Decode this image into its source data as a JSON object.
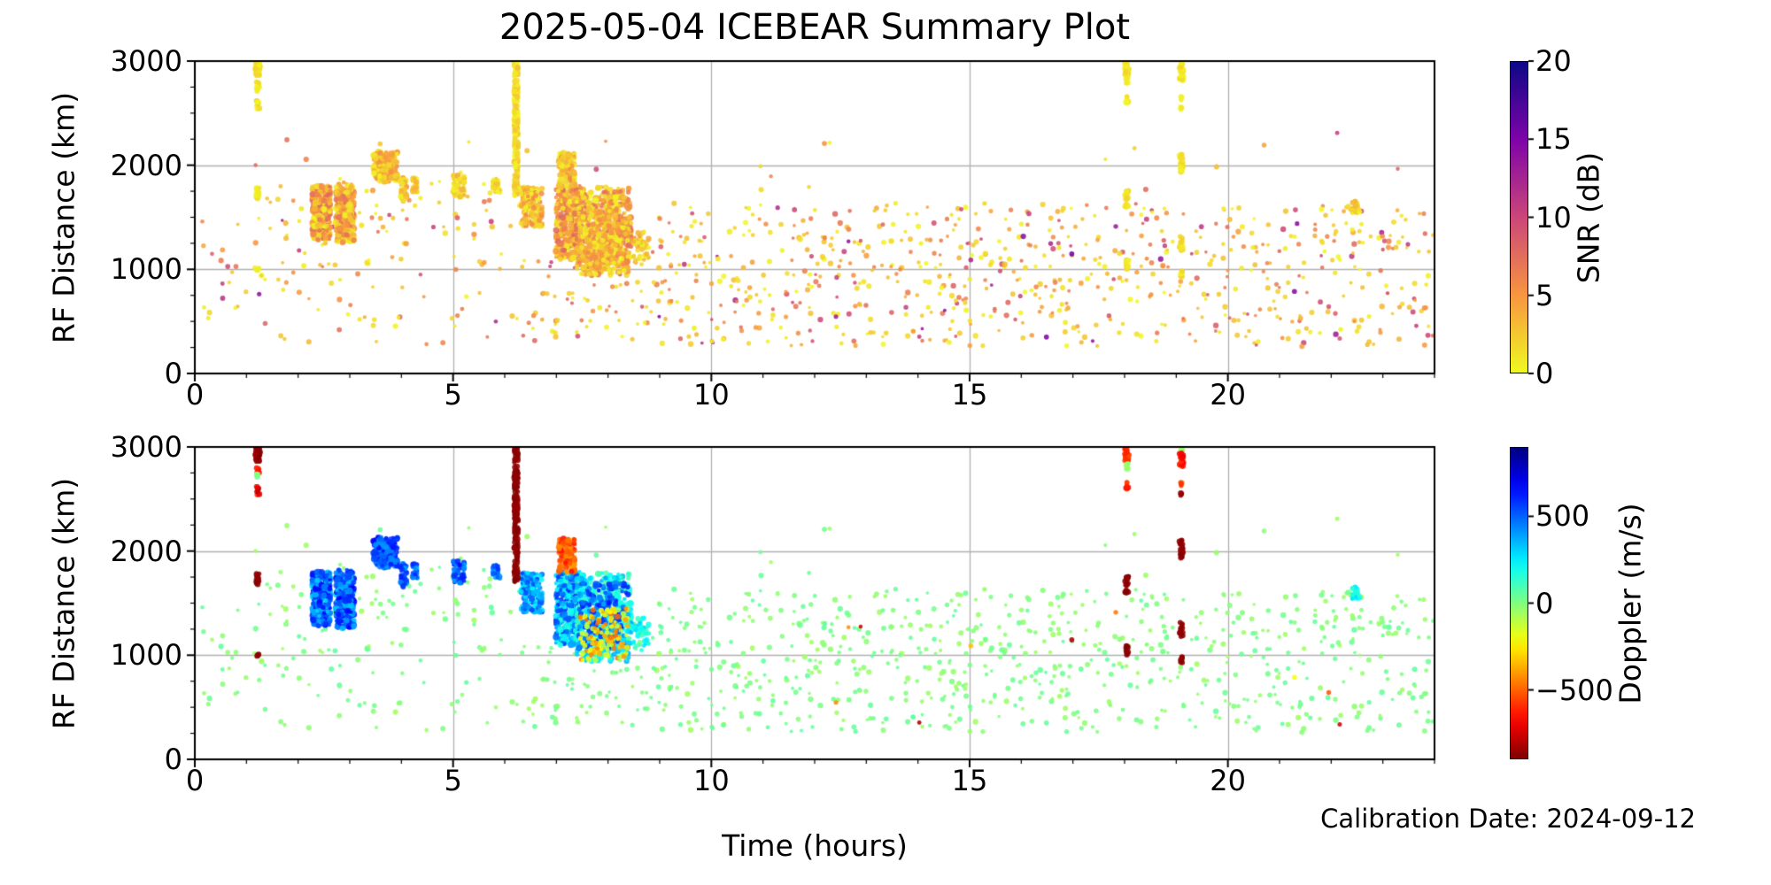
{
  "figure": {
    "title": "2025-05-04 ICEBEAR Summary Plot",
    "annotation": "Calibration Date: 2024-09-12",
    "background": "#ffffff",
    "grid_color": "#b0b0b0",
    "spine_color": "#000000"
  },
  "chart_data": [
    {
      "id": "snr",
      "type": "scatter",
      "title": "2025-05-04 ICEBEAR Summary Plot",
      "xlabel": "",
      "ylabel": "RF Distance (km)",
      "xlim": [
        0,
        24
      ],
      "ylim": [
        0,
        3000
      ],
      "xticks": [
        0,
        5,
        10,
        15,
        20
      ],
      "yticks": [
        0,
        1000,
        2000,
        3000
      ],
      "x_minor_step": 1,
      "y_minor_step": 250,
      "grid": true,
      "color_by": "snr",
      "legend_position": "none",
      "colorbar": {
        "label": "SNR (dB)",
        "ticks": [
          0,
          5,
          10,
          15,
          20
        ],
        "vmin": 0,
        "vmax": 20,
        "colormap": "plasma_r"
      }
    },
    {
      "id": "doppler",
      "type": "scatter",
      "title": "",
      "xlabel": "Time (hours)",
      "ylabel": "RF Distance (km)",
      "xlim": [
        0,
        24
      ],
      "ylim": [
        0,
        3000
      ],
      "xticks": [
        0,
        5,
        10,
        15,
        20
      ],
      "yticks": [
        0,
        1000,
        2000,
        3000
      ],
      "x_minor_step": 1,
      "y_minor_step": 250,
      "grid": true,
      "color_by": "doppler",
      "legend_position": "none",
      "colorbar": {
        "label": "Doppler (m/s)",
        "ticks": [
          -500,
          0,
          500
        ],
        "vmin": -900,
        "vmax": 900,
        "colormap": "jet"
      }
    }
  ],
  "point_groups": [
    {
      "name": "background-early",
      "x": [
        0.08,
        2.25
      ],
      "y": [
        260,
        1680
      ],
      "n": 50,
      "snr": "bg",
      "dop": [
        -60,
        60
      ],
      "r": [
        1.8,
        3.2
      ]
    },
    {
      "name": "background-morning",
      "x": [
        2.25,
        6.3
      ],
      "y": [
        260,
        1850
      ],
      "n": 105,
      "snr": "bg",
      "dop": [
        -60,
        60
      ],
      "r": [
        1.8,
        3.2
      ]
    },
    {
      "name": "background-midday",
      "x": [
        6.3,
        8.5
      ],
      "y": [
        260,
        1120
      ],
      "n": 60,
      "snr": "bg",
      "dop": [
        -60,
        60
      ],
      "r": [
        1.8,
        3.2
      ]
    },
    {
      "name": "background-afternoon",
      "x": [
        8.5,
        17.0
      ],
      "y": [
        260,
        1640
      ],
      "n": 440,
      "snr": "bg",
      "dop": [
        -60,
        60
      ],
      "r": [
        1.8,
        3.2
      ]
    },
    {
      "name": "background-evening",
      "x": [
        17.0,
        24.0
      ],
      "y": [
        260,
        1640
      ],
      "n": 310,
      "snr": "bg",
      "dop": [
        -60,
        60
      ],
      "r": [
        1.8,
        3.2
      ]
    },
    {
      "name": "background-high-altitude",
      "x": [
        0.3,
        23.8
      ],
      "y": [
        1660,
        2320
      ],
      "n": 26,
      "snr": "bg",
      "dop": [
        -60,
        60
      ],
      "r": [
        1.8,
        3.2
      ]
    },
    {
      "name": "dark-outliers",
      "x": [
        9.0,
        23.5
      ],
      "y": [
        260,
        1450
      ],
      "n": 10,
      "snr": [
        8,
        16
      ],
      "dop": [
        -880,
        -200
      ],
      "r": [
        2,
        3
      ]
    },
    {
      "name": "echo-cluster-0230",
      "x": [
        2.27,
        2.63
      ],
      "y": [
        1280,
        1800
      ],
      "n": 280,
      "snr": [
        0,
        8
      ],
      "dop": [
        280,
        680
      ],
      "r": [
        2,
        3.8
      ],
      "striate": true
    },
    {
      "name": "echo-cluster-0250",
      "x": [
        2.72,
        3.09
      ],
      "y": [
        1250,
        1820
      ],
      "n": 280,
      "snr": [
        0,
        8
      ],
      "dop": [
        300,
        700
      ],
      "r": [
        2,
        3.8
      ],
      "striate": true
    },
    {
      "name": "echo-cluster-0340",
      "x": [
        3.45,
        3.93
      ],
      "y": [
        1840,
        2130
      ],
      "n": 170,
      "snr": [
        0,
        6
      ],
      "dop": [
        380,
        680
      ],
      "r": [
        2,
        3.6
      ],
      "striate": true
    },
    {
      "name": "echo-cluster-0400",
      "x": [
        3.97,
        4.12
      ],
      "y": [
        1650,
        1890
      ],
      "n": 45,
      "snr": [
        0,
        5
      ],
      "dop": [
        380,
        650
      ],
      "r": [
        2,
        3.4
      ],
      "striate": true
    },
    {
      "name": "echo-cluster-0415",
      "x": [
        4.2,
        4.32
      ],
      "y": [
        1740,
        1880
      ],
      "n": 30,
      "snr": [
        0,
        4
      ],
      "dop": [
        380,
        640
      ],
      "r": [
        2,
        3.2
      ],
      "striate": true
    },
    {
      "name": "echo-cluster-0510",
      "x": [
        5.0,
        5.23
      ],
      "y": [
        1690,
        1905
      ],
      "n": 55,
      "snr": [
        0,
        4
      ],
      "dop": [
        380,
        650
      ],
      "r": [
        2,
        3.4
      ],
      "striate": true
    },
    {
      "name": "echo-cluster-0550",
      "x": [
        5.76,
        5.93
      ],
      "y": [
        1740,
        1875
      ],
      "n": 28,
      "snr": [
        0,
        3
      ],
      "dop": [
        380,
        600
      ],
      "r": [
        2,
        3.2
      ],
      "striate": true
    },
    {
      "name": "echo-cluster-0630",
      "x": [
        6.31,
        6.73
      ],
      "y": [
        1410,
        1790
      ],
      "n": 160,
      "snr": [
        0,
        6
      ],
      "dop": [
        220,
        560
      ],
      "r": [
        2,
        3.6
      ],
      "striate": true
    },
    {
      "name": "echo-cluster-0715-main",
      "x": [
        6.98,
        7.46
      ],
      "y": [
        1090,
        1810
      ],
      "n": 280,
      "snr": [
        0,
        8
      ],
      "dop": [
        140,
        620
      ],
      "r": [
        2,
        3.8
      ],
      "striate": true
    },
    {
      "name": "echo-cluster-0715-top-negative",
      "x": [
        7.04,
        7.36
      ],
      "y": [
        1790,
        2125
      ],
      "n": 130,
      "snr": [
        0,
        6
      ],
      "dop": [
        -660,
        -380
      ],
      "r": [
        2,
        3.6
      ],
      "striate": true
    },
    {
      "name": "echo-cluster-0800-cyan",
      "x": [
        7.38,
        8.46
      ],
      "y": [
        940,
        1790
      ],
      "n": 480,
      "snr": [
        0,
        8
      ],
      "dop": [
        60,
        400
      ],
      "r": [
        2,
        3.8
      ],
      "striate": true
    },
    {
      "name": "echo-cluster-0800-blue",
      "x": [
        7.42,
        8.4
      ],
      "y": [
        1050,
        1700
      ],
      "n": 160,
      "snr": [
        0,
        7
      ],
      "dop": [
        380,
        660
      ],
      "r": [
        2,
        3.6
      ],
      "striate": true
    },
    {
      "name": "echo-cluster-0800-negative",
      "x": [
        7.45,
        8.4
      ],
      "y": [
        950,
        1450
      ],
      "n": 130,
      "snr": [
        0,
        6
      ],
      "dop": [
        -500,
        -40
      ],
      "r": [
        2,
        3.4
      ],
      "striate": true
    },
    {
      "name": "echo-cluster-0838",
      "x": [
        8.48,
        8.8
      ],
      "y": [
        1040,
        1360
      ],
      "n": 45,
      "snr": [
        0,
        5
      ],
      "dop": [
        60,
        330
      ],
      "r": [
        2,
        3.2
      ],
      "striate": true
    },
    {
      "name": "echo-cluster-2230",
      "x": [
        22.4,
        22.56
      ],
      "y": [
        1530,
        1660
      ],
      "n": 28,
      "snr": [
        0,
        4
      ],
      "dop": [
        140,
        320
      ],
      "r": [
        2,
        3.2
      ],
      "striate": true
    },
    {
      "name": "streak-0112-top",
      "x": [
        1.17,
        1.27
      ],
      "y": [
        2860,
        3000
      ],
      "n": 45,
      "snr": [
        0,
        2
      ],
      "dop": [
        -900,
        -840
      ],
      "r": [
        2.4,
        3.4
      ],
      "striate": true
    },
    {
      "name": "streak-0112-b",
      "x": [
        1.19,
        1.25
      ],
      "y": [
        2745,
        2805
      ],
      "n": 8,
      "snr": [
        0,
        2
      ],
      "dop": [
        -680,
        -560
      ],
      "r": [
        2.4,
        3.4
      ]
    },
    {
      "name": "streak-0112-c",
      "x": [
        1.2,
        1.24
      ],
      "y": [
        2695,
        2740
      ],
      "n": 4,
      "snr": [
        0,
        1
      ],
      "dop": [
        -60,
        30
      ],
      "r": [
        2.4,
        3.4
      ]
    },
    {
      "name": "streak-0112-d",
      "x": [
        1.19,
        1.25
      ],
      "y": [
        2535,
        2640
      ],
      "n": 10,
      "snr": [
        0,
        2
      ],
      "dop": [
        -880,
        -580
      ],
      "r": [
        2.4,
        3.4
      ]
    },
    {
      "name": "streak-0112-e",
      "x": [
        1.19,
        1.25
      ],
      "y": [
        1675,
        1785
      ],
      "n": 15,
      "snr": [
        0,
        2
      ],
      "dop": [
        -900,
        -850
      ],
      "r": [
        2.4,
        3.4
      ]
    },
    {
      "name": "streak-0112-f",
      "x": [
        1.2,
        1.24
      ],
      "y": [
        975,
        1025
      ],
      "n": 5,
      "snr": [
        0,
        1
      ],
      "dop": [
        -900,
        -850
      ],
      "r": [
        2.4,
        3.4
      ]
    },
    {
      "name": "streak-0613-column",
      "x": [
        6.17,
        6.27
      ],
      "y": [
        1700,
        3000
      ],
      "n": 175,
      "snr": [
        0,
        3
      ],
      "dop": [
        -900,
        -855
      ],
      "r": [
        2.4,
        3.4
      ],
      "striate": true
    },
    {
      "name": "streak-1803-top",
      "x": [
        18.0,
        18.09
      ],
      "y": [
        2865,
        3000
      ],
      "n": 28,
      "snr": [
        0,
        2
      ],
      "dop": [
        -660,
        -520
      ],
      "r": [
        2.4,
        3.4
      ]
    },
    {
      "name": "streak-1803-b",
      "x": [
        18.02,
        18.07
      ],
      "y": [
        2785,
        2840
      ],
      "n": 7,
      "snr": [
        0,
        1
      ],
      "dop": [
        -90,
        10
      ],
      "r": [
        2.4,
        3.4
      ]
    },
    {
      "name": "streak-1803-c",
      "x": [
        18.01,
        18.08
      ],
      "y": [
        2585,
        2665
      ],
      "n": 9,
      "snr": [
        0,
        2
      ],
      "dop": [
        -660,
        -540
      ],
      "r": [
        2.4,
        3.4
      ]
    },
    {
      "name": "streak-1803-d",
      "x": [
        18.01,
        18.08
      ],
      "y": [
        1595,
        1760
      ],
      "n": 22,
      "snr": [
        0,
        2
      ],
      "dop": [
        -900,
        -855
      ],
      "r": [
        2.4,
        3.4
      ]
    },
    {
      "name": "streak-1803-e",
      "x": [
        18.02,
        18.07
      ],
      "y": [
        1005,
        1095
      ],
      "n": 10,
      "snr": [
        0,
        2
      ],
      "dop": [
        -900,
        -855
      ],
      "r": [
        2.4,
        3.4
      ]
    },
    {
      "name": "streak-1908-top",
      "x": [
        19.07,
        19.13
      ],
      "y": [
        2945,
        3000
      ],
      "n": 7,
      "snr": [
        0,
        1
      ],
      "dop": [
        -120,
        -20
      ],
      "r": [
        2.4,
        3.4
      ]
    },
    {
      "name": "streak-1908-b",
      "x": [
        19.06,
        19.14
      ],
      "y": [
        2790,
        2945
      ],
      "n": 22,
      "snr": [
        0,
        2
      ],
      "dop": [
        -760,
        -560
      ],
      "r": [
        2.4,
        3.4
      ]
    },
    {
      "name": "streak-1908-c",
      "x": [
        19.08,
        19.12
      ],
      "y": [
        2625,
        2670
      ],
      "n": 4,
      "snr": [
        0,
        1
      ],
      "dop": [
        -620,
        -520
      ],
      "r": [
        2.4,
        3.4
      ]
    },
    {
      "name": "streak-1908-d",
      "x": [
        19.08,
        19.12
      ],
      "y": [
        2525,
        2570
      ],
      "n": 4,
      "snr": [
        0,
        1
      ],
      "dop": [
        -890,
        -840
      ],
      "r": [
        2.4,
        3.4
      ]
    },
    {
      "name": "streak-1908-e",
      "x": [
        19.06,
        19.13
      ],
      "y": [
        1935,
        2115
      ],
      "n": 24,
      "snr": [
        0,
        2
      ],
      "dop": [
        -900,
        -855
      ],
      "r": [
        2.4,
        3.4
      ]
    },
    {
      "name": "streak-1908-f",
      "x": [
        19.07,
        19.13
      ],
      "y": [
        1175,
        1315
      ],
      "n": 15,
      "snr": [
        0,
        2
      ],
      "dop": [
        -900,
        -855
      ],
      "r": [
        2.4,
        3.4
      ]
    },
    {
      "name": "streak-1908-g",
      "x": [
        19.08,
        19.12
      ],
      "y": [
        915,
        995
      ],
      "n": 8,
      "snr": [
        0,
        2
      ],
      "dop": [
        -900,
        -855
      ],
      "r": [
        2.4,
        3.4
      ]
    }
  ],
  "render": {
    "seed": 20250504,
    "alpha": 0.88
  }
}
